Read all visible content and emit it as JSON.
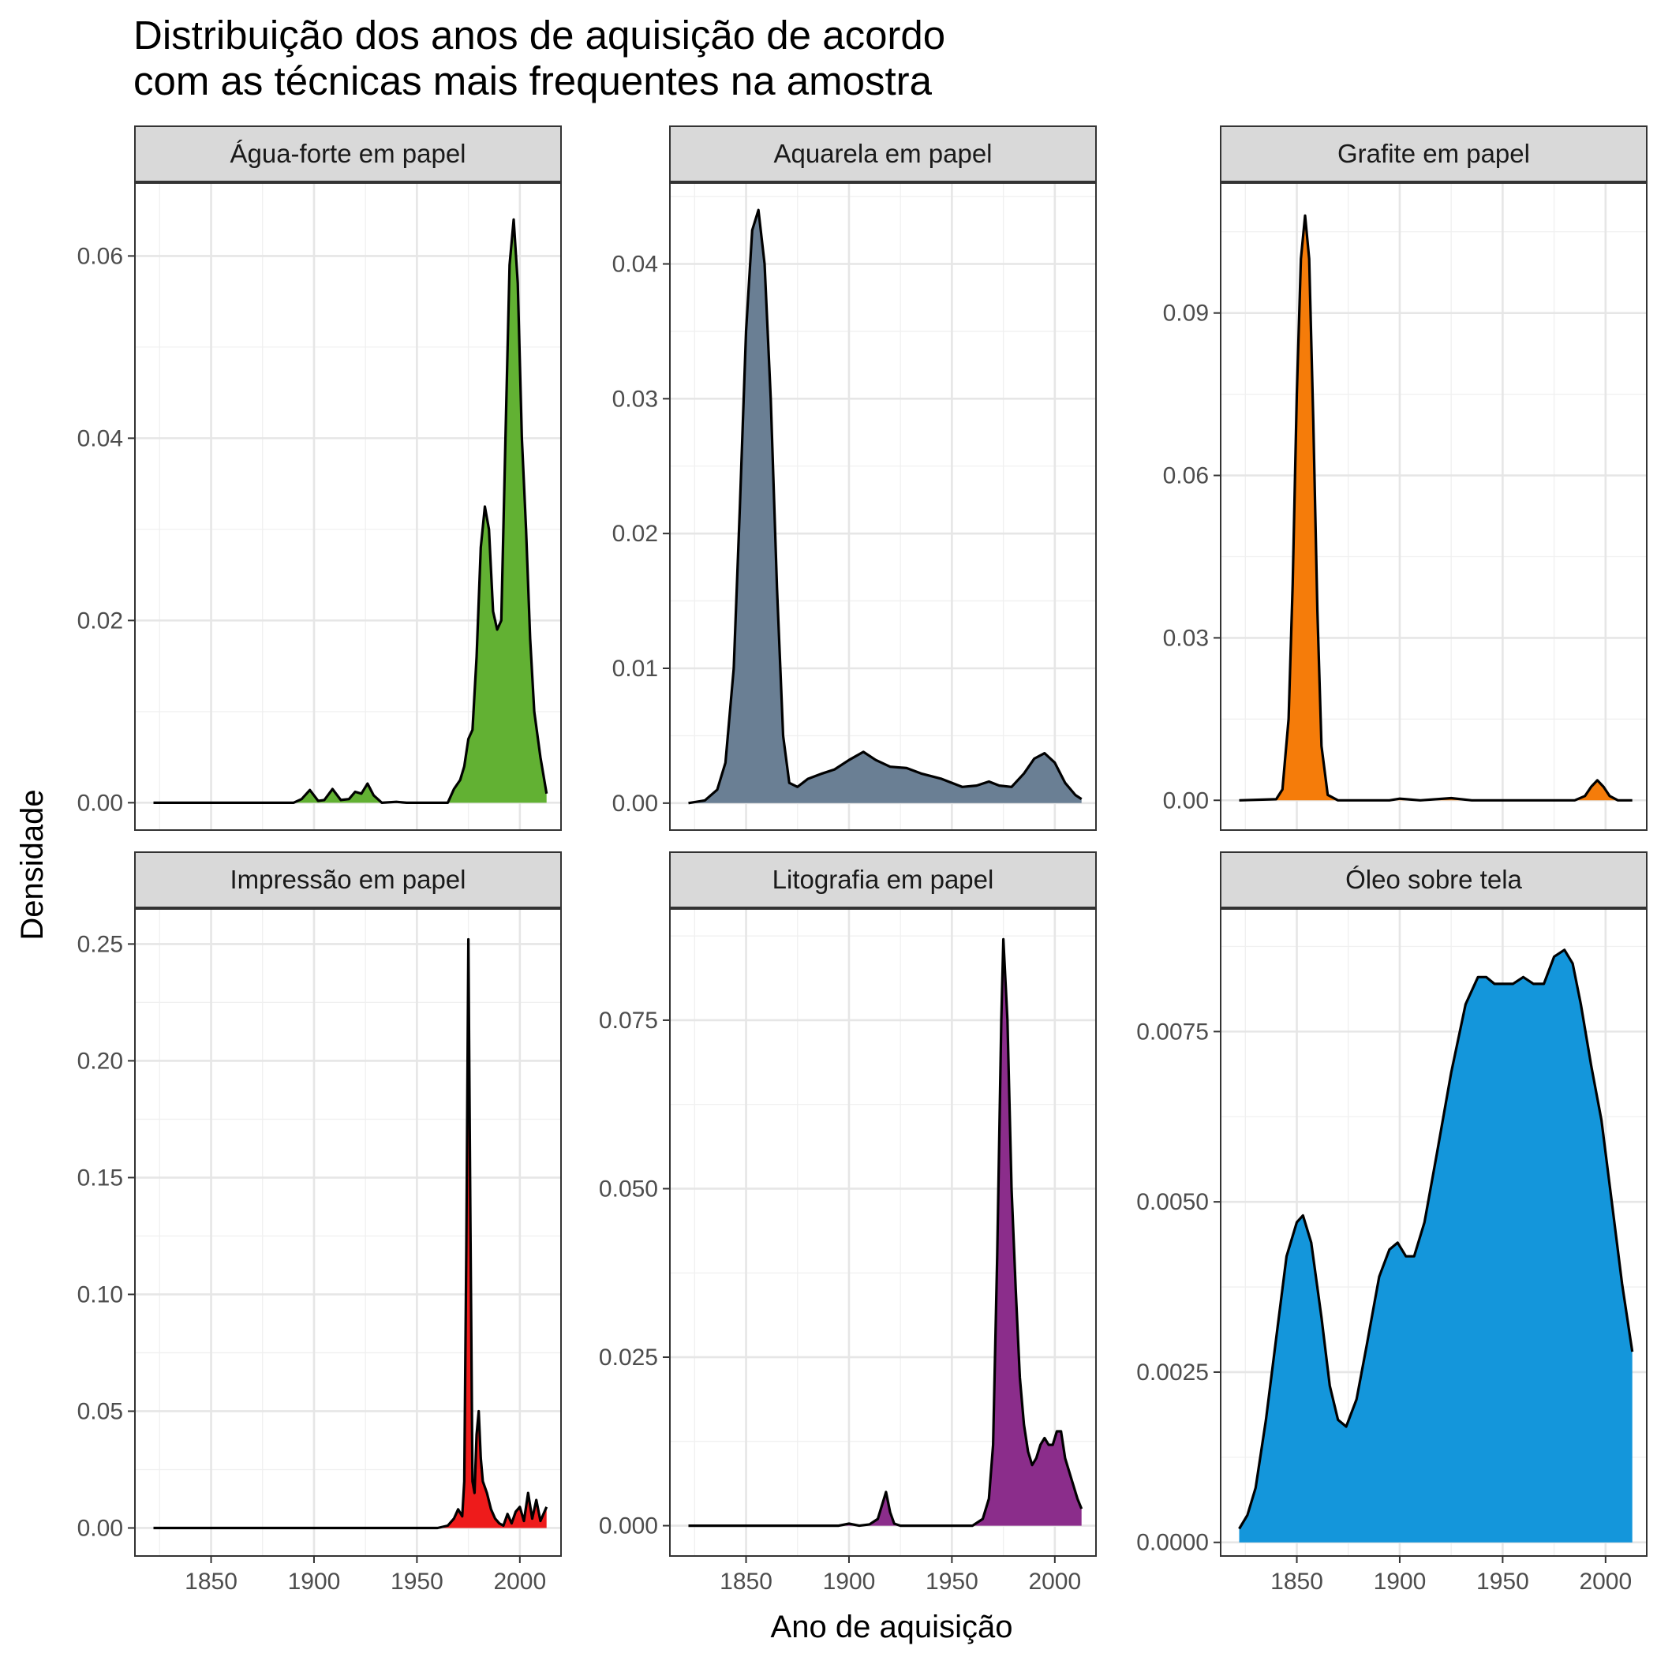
{
  "chart_data": {
    "type": "area",
    "title": [
      "Distribuição dos anos de aquisição de acordo",
      "com as técnicas mais frequentes na amostra"
    ],
    "xlabel": "Ano de aquisição",
    "ylabel": "Densidade",
    "xlim": [
      1813,
      2020
    ],
    "x_ticks": [
      1850,
      1900,
      1950,
      2000
    ],
    "grid": true,
    "legend": "none",
    "facets": [
      {
        "name": "Água-forte em papel",
        "color": "#62b133",
        "ylim": [
          -0.003,
          0.068
        ],
        "y_ticks": [
          0.0,
          0.02,
          0.04,
          0.06
        ],
        "y_tick_labels": [
          "0.00",
          "0.02",
          "0.04",
          "0.06"
        ],
        "points": [
          [
            1822,
            0.0
          ],
          [
            1890,
            0.0
          ],
          [
            1894,
            0.0004
          ],
          [
            1898,
            0.0014
          ],
          [
            1902,
            0.0002
          ],
          [
            1905,
            0.0003
          ],
          [
            1909,
            0.0015
          ],
          [
            1913,
            0.0003
          ],
          [
            1917,
            0.0004
          ],
          [
            1920,
            0.0012
          ],
          [
            1923,
            0.001
          ],
          [
            1926,
            0.0021
          ],
          [
            1929,
            0.0008
          ],
          [
            1933,
            0.0
          ],
          [
            1940,
            0.0001
          ],
          [
            1945,
            0.0
          ],
          [
            1965,
            0.0
          ],
          [
            1968,
            0.0015
          ],
          [
            1971,
            0.0025
          ],
          [
            1973,
            0.004
          ],
          [
            1975,
            0.007
          ],
          [
            1977,
            0.008
          ],
          [
            1979,
            0.016
          ],
          [
            1981,
            0.028
          ],
          [
            1983,
            0.0325
          ],
          [
            1985,
            0.03
          ],
          [
            1987,
            0.021
          ],
          [
            1989,
            0.019
          ],
          [
            1991,
            0.02
          ],
          [
            1993,
            0.04
          ],
          [
            1995,
            0.059
          ],
          [
            1997,
            0.064
          ],
          [
            1999,
            0.057
          ],
          [
            2001,
            0.04
          ],
          [
            2003,
            0.03
          ],
          [
            2005,
            0.018
          ],
          [
            2007,
            0.01
          ],
          [
            2010,
            0.005
          ],
          [
            2013,
            0.001
          ]
        ]
      },
      {
        "name": "Aquarela em papel",
        "color": "#6a7f94",
        "ylim": [
          -0.002,
          0.046
        ],
        "y_ticks": [
          0.0,
          0.01,
          0.02,
          0.03,
          0.04
        ],
        "y_tick_labels": [
          "0.00",
          "0.01",
          "0.02",
          "0.03",
          "0.04"
        ],
        "points": [
          [
            1822,
            0.0
          ],
          [
            1830,
            0.0002
          ],
          [
            1836,
            0.001
          ],
          [
            1840,
            0.003
          ],
          [
            1844,
            0.01
          ],
          [
            1847,
            0.022
          ],
          [
            1850,
            0.035
          ],
          [
            1853,
            0.0425
          ],
          [
            1856,
            0.044
          ],
          [
            1859,
            0.04
          ],
          [
            1862,
            0.03
          ],
          [
            1865,
            0.016
          ],
          [
            1868,
            0.005
          ],
          [
            1871,
            0.0015
          ],
          [
            1875,
            0.0012
          ],
          [
            1880,
            0.0018
          ],
          [
            1887,
            0.0022
          ],
          [
            1893,
            0.0025
          ],
          [
            1900,
            0.0032
          ],
          [
            1907,
            0.0038
          ],
          [
            1913,
            0.0032
          ],
          [
            1920,
            0.0027
          ],
          [
            1928,
            0.0026
          ],
          [
            1935,
            0.0022
          ],
          [
            1945,
            0.0018
          ],
          [
            1955,
            0.0012
          ],
          [
            1962,
            0.0013
          ],
          [
            1968,
            0.0016
          ],
          [
            1973,
            0.0013
          ],
          [
            1979,
            0.0012
          ],
          [
            1985,
            0.0022
          ],
          [
            1990,
            0.0033
          ],
          [
            1995,
            0.0037
          ],
          [
            2000,
            0.003
          ],
          [
            2005,
            0.0015
          ],
          [
            2010,
            0.0006
          ],
          [
            2013,
            0.0003
          ]
        ]
      },
      {
        "name": "Grafite em papel",
        "color": "#f57c0a",
        "ylim": [
          -0.0055,
          0.114
        ],
        "y_ticks": [
          0.0,
          0.03,
          0.06,
          0.09
        ],
        "y_tick_labels": [
          "0.00",
          "0.03",
          "0.06",
          "0.09"
        ],
        "points": [
          [
            1822,
            0.0
          ],
          [
            1840,
            0.0002
          ],
          [
            1843,
            0.002
          ],
          [
            1846,
            0.015
          ],
          [
            1848,
            0.04
          ],
          [
            1850,
            0.075
          ],
          [
            1852,
            0.1
          ],
          [
            1854,
            0.108
          ],
          [
            1856,
            0.1
          ],
          [
            1858,
            0.07
          ],
          [
            1860,
            0.035
          ],
          [
            1862,
            0.01
          ],
          [
            1865,
            0.001
          ],
          [
            1870,
            0.0
          ],
          [
            1895,
            0.0
          ],
          [
            1900,
            0.0003
          ],
          [
            1910,
            0.0
          ],
          [
            1925,
            0.0004
          ],
          [
            1935,
            0.0
          ],
          [
            1985,
            0.0
          ],
          [
            1990,
            0.0008
          ],
          [
            1993,
            0.0025
          ],
          [
            1996,
            0.0037
          ],
          [
            1999,
            0.0025
          ],
          [
            2002,
            0.0008
          ],
          [
            2006,
            0.0
          ],
          [
            2013,
            0.0
          ]
        ]
      },
      {
        "name": "Impressão em papel",
        "color": "#ee1b1b",
        "ylim": [
          -0.012,
          0.265
        ],
        "y_ticks": [
          0.0,
          0.05,
          0.1,
          0.15,
          0.2,
          0.25
        ],
        "y_tick_labels": [
          "0.00",
          "0.05",
          "0.10",
          "0.15",
          "0.20",
          "0.25"
        ],
        "points": [
          [
            1822,
            0.0
          ],
          [
            1960,
            0.0
          ],
          [
            1965,
            0.001
          ],
          [
            1968,
            0.004
          ],
          [
            1970,
            0.008
          ],
          [
            1972,
            0.005
          ],
          [
            1973,
            0.02
          ],
          [
            1974,
            0.12
          ],
          [
            1975,
            0.252
          ],
          [
            1976,
            0.13
          ],
          [
            1977,
            0.02
          ],
          [
            1978,
            0.015
          ],
          [
            1979,
            0.04
          ],
          [
            1980,
            0.05
          ],
          [
            1981,
            0.03
          ],
          [
            1982,
            0.02
          ],
          [
            1984,
            0.015
          ],
          [
            1986,
            0.008
          ],
          [
            1988,
            0.004
          ],
          [
            1990,
            0.002
          ],
          [
            1992,
            0.001
          ],
          [
            1994,
            0.006
          ],
          [
            1996,
            0.002
          ],
          [
            1998,
            0.007
          ],
          [
            2000,
            0.009
          ],
          [
            2002,
            0.003
          ],
          [
            2004,
            0.015
          ],
          [
            2006,
            0.004
          ],
          [
            2008,
            0.012
          ],
          [
            2010,
            0.003
          ],
          [
            2013,
            0.009
          ]
        ]
      },
      {
        "name": "Litografia em papel",
        "color": "#8b2d8b",
        "ylim": [
          -0.0045,
          0.0915
        ],
        "y_ticks": [
          0.0,
          0.025,
          0.05,
          0.075
        ],
        "y_tick_labels": [
          "0.000",
          "0.025",
          "0.050",
          "0.075"
        ],
        "points": [
          [
            1822,
            0.0
          ],
          [
            1895,
            0.0
          ],
          [
            1900,
            0.0003
          ],
          [
            1905,
            0.0
          ],
          [
            1910,
            0.0002
          ],
          [
            1914,
            0.001
          ],
          [
            1916,
            0.003
          ],
          [
            1918,
            0.005
          ],
          [
            1920,
            0.002
          ],
          [
            1922,
            0.0003
          ],
          [
            1925,
            0.0
          ],
          [
            1960,
            0.0
          ],
          [
            1965,
            0.001
          ],
          [
            1968,
            0.004
          ],
          [
            1970,
            0.012
          ],
          [
            1972,
            0.04
          ],
          [
            1974,
            0.075
          ],
          [
            1975,
            0.087
          ],
          [
            1977,
            0.075
          ],
          [
            1979,
            0.05
          ],
          [
            1981,
            0.035
          ],
          [
            1983,
            0.022
          ],
          [
            1985,
            0.015
          ],
          [
            1987,
            0.011
          ],
          [
            1989,
            0.009
          ],
          [
            1991,
            0.01
          ],
          [
            1993,
            0.012
          ],
          [
            1995,
            0.013
          ],
          [
            1997,
            0.012
          ],
          [
            1999,
            0.012
          ],
          [
            2001,
            0.014
          ],
          [
            2003,
            0.014
          ],
          [
            2005,
            0.01
          ],
          [
            2008,
            0.007
          ],
          [
            2011,
            0.004
          ],
          [
            2013,
            0.0025
          ]
        ]
      },
      {
        "name": "Óleo sobre tela",
        "color": "#1496db",
        "ylim": [
          -0.0002,
          0.0093
        ],
        "y_ticks": [
          0.0,
          0.0025,
          0.005,
          0.0075
        ],
        "y_tick_labels": [
          "0.0000",
          "0.0025",
          "0.0050",
          "0.0075"
        ],
        "points": [
          [
            1822,
            0.0002
          ],
          [
            1826,
            0.0004
          ],
          [
            1830,
            0.0008
          ],
          [
            1835,
            0.0018
          ],
          [
            1840,
            0.003
          ],
          [
            1845,
            0.0042
          ],
          [
            1850,
            0.0047
          ],
          [
            1853,
            0.0048
          ],
          [
            1857,
            0.0044
          ],
          [
            1862,
            0.0033
          ],
          [
            1866,
            0.0023
          ],
          [
            1870,
            0.0018
          ],
          [
            1874,
            0.0017
          ],
          [
            1879,
            0.0021
          ],
          [
            1884,
            0.0029
          ],
          [
            1890,
            0.0039
          ],
          [
            1895,
            0.0043
          ],
          [
            1899,
            0.0044
          ],
          [
            1903,
            0.0042
          ],
          [
            1907,
            0.0042
          ],
          [
            1912,
            0.0047
          ],
          [
            1918,
            0.0057
          ],
          [
            1925,
            0.0069
          ],
          [
            1932,
            0.0079
          ],
          [
            1938,
            0.0083
          ],
          [
            1942,
            0.0083
          ],
          [
            1946,
            0.0082
          ],
          [
            1950,
            0.0082
          ],
          [
            1955,
            0.0082
          ],
          [
            1960,
            0.0083
          ],
          [
            1965,
            0.0082
          ],
          [
            1970,
            0.0082
          ],
          [
            1975,
            0.0086
          ],
          [
            1980,
            0.0087
          ],
          [
            1984,
            0.0085
          ],
          [
            1988,
            0.0079
          ],
          [
            1993,
            0.007
          ],
          [
            1998,
            0.0062
          ],
          [
            2003,
            0.005
          ],
          [
            2008,
            0.0038
          ],
          [
            2013,
            0.0028
          ]
        ]
      }
    ]
  }
}
